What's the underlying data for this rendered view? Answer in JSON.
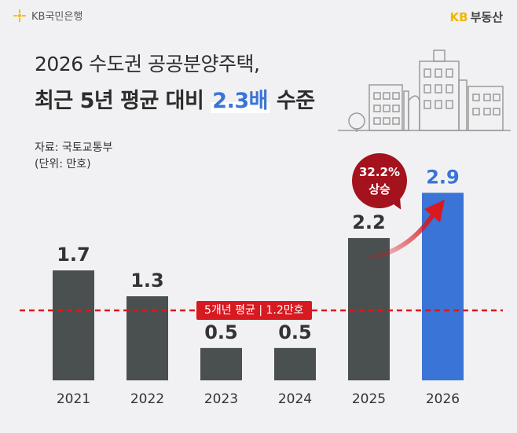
{
  "header": {
    "bank_logo_text": "KB국민은행",
    "brand_kb": "KB",
    "brand_name": "부동산"
  },
  "title": {
    "line1": "2026 수도권 공공분양주택,",
    "line2_prefix": "최근 5년 평균 대비 ",
    "line2_highlight": "2.3배",
    "line2_suffix": " 수준"
  },
  "source": {
    "line1": "자료: 국토교통부",
    "line2": "(단위: 만호)"
  },
  "callout": {
    "line1": "32.2%",
    "line2": "상승"
  },
  "average": {
    "label": "5개년 평균 | 1.2만호",
    "value": 1.2
  },
  "colors": {
    "bar": "#4a4f4f",
    "bar_highlight": "#3a74d6",
    "avg_line": "#d71920",
    "callout": "#a4121d",
    "accent": "#f2b600"
  },
  "chart_data": {
    "type": "bar",
    "categories": [
      "2021",
      "2022",
      "2023",
      "2024",
      "2025",
      "2026"
    ],
    "values": [
      1.7,
      1.3,
      0.5,
      0.5,
      2.2,
      2.9
    ],
    "value_labels": [
      "1.7",
      "1.3",
      "0.5",
      "0.5",
      "2.2",
      "2.9"
    ],
    "highlight_index": 5,
    "reference_line": 1.2,
    "ylim": [
      0,
      3.2
    ],
    "title": "2026 수도권 공공분양주택, 최근 5년 평균 대비 2.3배 수준",
    "xlabel": "",
    "ylabel": "만호"
  }
}
